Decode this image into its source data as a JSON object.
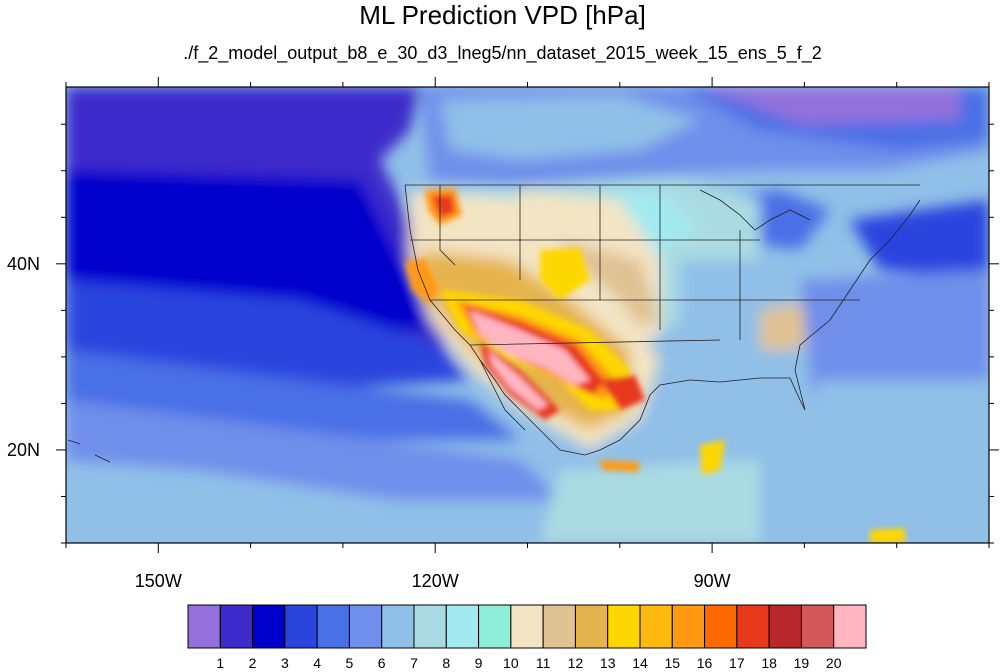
{
  "title": "ML Prediction VPD [hPa]",
  "subtitle": "./f_2_model_output_b8_e_30_d3_lneg5/nn_dataset_2015_week_15_ens_5_f_2",
  "map": {
    "projection": "cylindrical equidistant",
    "lon_range": [
      -160,
      -60
    ],
    "lat_range": [
      10,
      59
    ],
    "lon_ticks": [
      {
        "value": -150,
        "label": "150W"
      },
      {
        "value": -120,
        "label": "120W"
      },
      {
        "value": -90,
        "label": "90W"
      }
    ],
    "lat_ticks": [
      {
        "value": 40,
        "label": "40N"
      },
      {
        "value": 20,
        "label": "20N"
      }
    ]
  },
  "colorbar": {
    "labels": [
      "1",
      "2",
      "3",
      "4",
      "5",
      "6",
      "7",
      "8",
      "9",
      "10",
      "11",
      "12",
      "13",
      "14",
      "15",
      "16",
      "17",
      "18",
      "19",
      "20"
    ],
    "colors": [
      "#9370db",
      "#3d2ccb",
      "#0000cd",
      "#2a45de",
      "#4a70e6",
      "#6f8fea",
      "#90bfe8",
      "#aadbe2",
      "#a3eaf0",
      "#8feed8",
      "#f3e4c4",
      "#e0c293",
      "#e6b44e",
      "#ffd700",
      "#ffb90f",
      "#ff9912",
      "#ff6a00",
      "#e8381c",
      "#b8282a",
      "#d4585a",
      "#ffb6c1"
    ]
  }
}
